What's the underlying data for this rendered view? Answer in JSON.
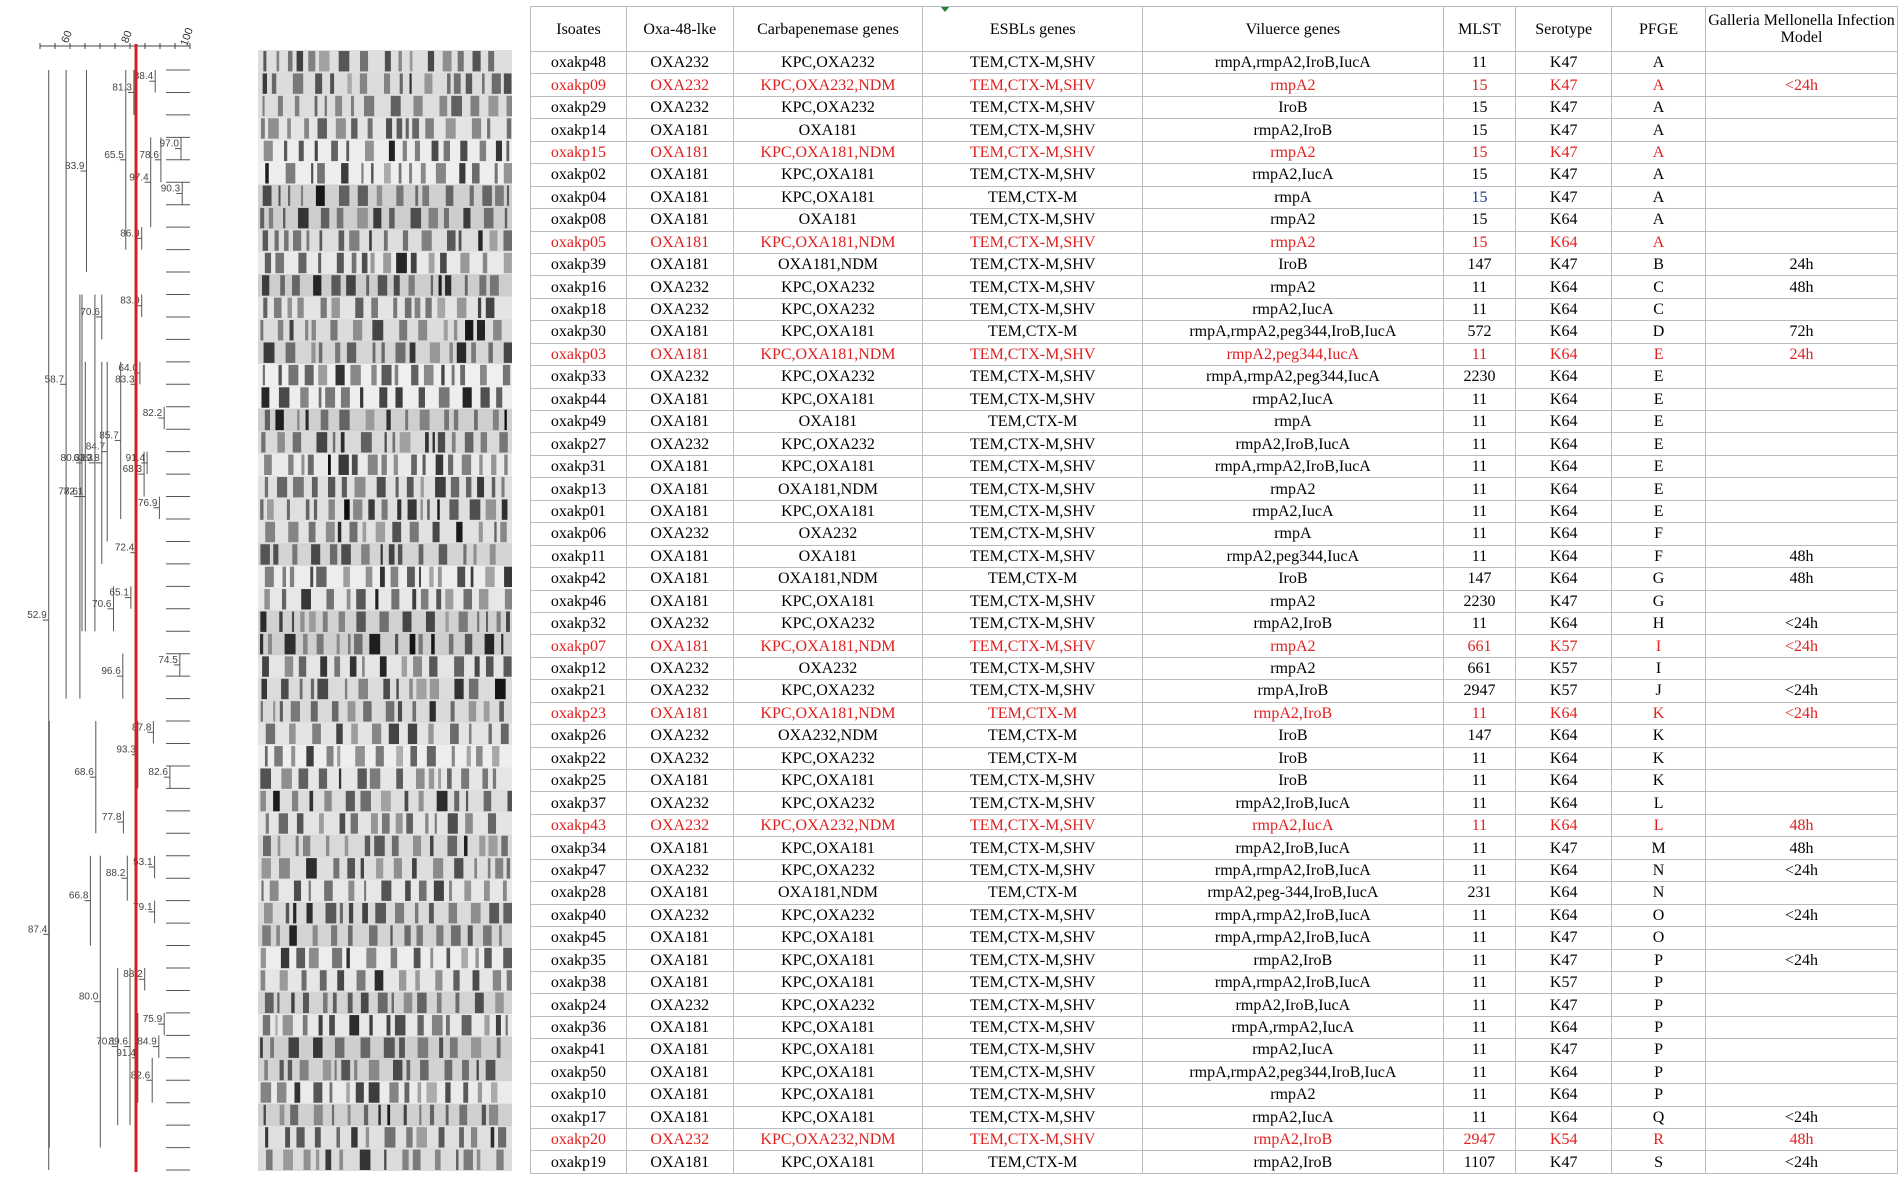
{
  "dendrogram": {
    "scale_ticks": [
      "60",
      "80",
      "100"
    ],
    "node_labels": [
      "88.4",
      "81.3",
      "97.0",
      "78.6",
      "90.3",
      "97.4",
      "86.9",
      "65.5",
      "83.9",
      "83.9",
      "70.6",
      "64.0",
      "83.3",
      "82.2",
      "91.4",
      "68.3",
      "76.9",
      "85.7",
      "84.7",
      "72.4",
      "89.8",
      "65.1",
      "70.6",
      "82.1",
      "63.3",
      "80.3",
      "74.5",
      "96.6",
      "77.6",
      "58.7",
      "87.8",
      "82.6",
      "93.3",
      "77.8",
      "68.6",
      "53.1",
      "88.2",
      "79.1",
      "66.8",
      "88.2",
      "75.9",
      "84.9",
      "82.6",
      "91.4",
      "89.6",
      "70.1",
      "80.0",
      "87.4",
      "52.9"
    ],
    "cut_line_color": "#d42020"
  },
  "table": {
    "headers": [
      "Isoates",
      "Oxa-48-lke",
      "Carbapenemase genes",
      "ESBLs genes",
      "Viluerce genes",
      "MLST",
      "Serotype",
      "PFGE",
      "Galleria Mellonella Infection Model"
    ],
    "highlight_color": "#e0201f",
    "rows": [
      {
        "id": "oxakp48",
        "oxa": "OXA232",
        "carb": "KPC,OXA232",
        "esbl": "TEM,CTX-M,SHV",
        "vir": "rmpA,rmpA2,IroB,IucA",
        "mlst": "11",
        "sero": "K47",
        "pfge": "A",
        "gm": "",
        "hl": false
      },
      {
        "id": "oxakp09",
        "oxa": "OXA232",
        "carb": "KPC,OXA232,NDM",
        "esbl": "TEM,CTX-M,SHV",
        "vir": "rmpA2",
        "mlst": "15",
        "sero": "K47",
        "pfge": "A",
        "gm": "<24h",
        "hl": true
      },
      {
        "id": "oxakp29",
        "oxa": "OXA232",
        "carb": "KPC,OXA232",
        "esbl": "TEM,CTX-M,SHV",
        "vir": "IroB",
        "mlst": "15",
        "sero": "K47",
        "pfge": "A",
        "gm": "",
        "hl": false
      },
      {
        "id": "oxakp14",
        "oxa": "OXA181",
        "carb": "OXA181",
        "esbl": "TEM,CTX-M,SHV",
        "vir": "rmpA2,IroB",
        "mlst": "15",
        "sero": "K47",
        "pfge": "A",
        "gm": "",
        "hl": false
      },
      {
        "id": "oxakp15",
        "oxa": "OXA181",
        "carb": "KPC,OXA181,NDM",
        "esbl": "TEM,CTX-M,SHV",
        "vir": "rmpA2",
        "mlst": "15",
        "sero": "K47",
        "pfge": "A",
        "gm": "",
        "hl": true
      },
      {
        "id": "oxakp02",
        "oxa": "OXA181",
        "carb": "KPC,OXA181",
        "esbl": "TEM,CTX-M,SHV",
        "vir": "rmpA2,IucA",
        "mlst": "15",
        "sero": "K47",
        "pfge": "A",
        "gm": "",
        "hl": false
      },
      {
        "id": "oxakp04",
        "oxa": "OXA181",
        "carb": "KPC,OXA181",
        "esbl": "TEM,CTX-M",
        "vir": "rmpA",
        "mlst": "15",
        "sero": "K47",
        "pfge": "A",
        "gm": "",
        "hl": false,
        "mlst_blue": true
      },
      {
        "id": "oxakp08",
        "oxa": "OXA181",
        "carb": "OXA181",
        "esbl": "TEM,CTX-M,SHV",
        "vir": "rmpA2",
        "mlst": "15",
        "sero": "K64",
        "pfge": "A",
        "gm": "",
        "hl": false
      },
      {
        "id": "oxakp05",
        "oxa": "OXA181",
        "carb": "KPC,OXA181,NDM",
        "esbl": "TEM,CTX-M,SHV",
        "vir": "rmpA2",
        "mlst": "15",
        "sero": "K64",
        "pfge": "A",
        "gm": "",
        "hl": true
      },
      {
        "id": "oxakp39",
        "oxa": "OXA181",
        "carb": "OXA181,NDM",
        "esbl": "TEM,CTX-M,SHV",
        "vir": "IroB",
        "mlst": "147",
        "sero": "K47",
        "pfge": "B",
        "gm": "24h",
        "hl": false
      },
      {
        "id": "oxakp16",
        "oxa": "OXA232",
        "carb": "KPC,OXA232",
        "esbl": "TEM,CTX-M,SHV",
        "vir": "rmpA2",
        "mlst": "11",
        "sero": "K64",
        "pfge": "C",
        "gm": "48h",
        "hl": false
      },
      {
        "id": "oxakp18",
        "oxa": "OXA232",
        "carb": "KPC,OXA232",
        "esbl": "TEM,CTX-M,SHV",
        "vir": "rmpA2,IucA",
        "mlst": "11",
        "sero": "K64",
        "pfge": "C",
        "gm": "",
        "hl": false
      },
      {
        "id": "oxakp30",
        "oxa": "OXA181",
        "carb": "KPC,OXA181",
        "esbl": "TEM,CTX-M",
        "vir": "rmpA,rmpA2,peg344,IroB,IucA",
        "mlst": "572",
        "sero": "K64",
        "pfge": "D",
        "gm": "72h",
        "hl": false
      },
      {
        "id": "oxakp03",
        "oxa": "OXA181",
        "carb": "KPC,OXA181,NDM",
        "esbl": "TEM,CTX-M,SHV",
        "vir": "rmpA2,peg344,IucA",
        "mlst": "11",
        "sero": "K64",
        "pfge": "E",
        "gm": "24h",
        "hl": true
      },
      {
        "id": "oxakp33",
        "oxa": "OXA232",
        "carb": "KPC,OXA232",
        "esbl": "TEM,CTX-M,SHV",
        "vir": "rmpA,rmpA2,peg344,IucA",
        "mlst": "2230",
        "sero": "K64",
        "pfge": "E",
        "gm": "",
        "hl": false
      },
      {
        "id": "oxakp44",
        "oxa": "OXA181",
        "carb": "KPC,OXA181",
        "esbl": "TEM,CTX-M,SHV",
        "vir": "rmpA2,IucA",
        "mlst": "11",
        "sero": "K64",
        "pfge": "E",
        "gm": "",
        "hl": false
      },
      {
        "id": "oxakp49",
        "oxa": "OXA181",
        "carb": "OXA181",
        "esbl": "TEM,CTX-M",
        "vir": "rmpA",
        "mlst": "11",
        "sero": "K64",
        "pfge": "E",
        "gm": "",
        "hl": false
      },
      {
        "id": "oxakp27",
        "oxa": "OXA232",
        "carb": "KPC,OXA232",
        "esbl": "TEM,CTX-M,SHV",
        "vir": "rmpA2,IroB,IucA",
        "mlst": "11",
        "sero": "K64",
        "pfge": "E",
        "gm": "",
        "hl": false
      },
      {
        "id": "oxakp31",
        "oxa": "OXA181",
        "carb": "KPC,OXA181",
        "esbl": "TEM,CTX-M,SHV",
        "vir": "rmpA,rmpA2,IroB,IucA",
        "mlst": "11",
        "sero": "K64",
        "pfge": "E",
        "gm": "",
        "hl": false
      },
      {
        "id": "oxakp13",
        "oxa": "OXA181",
        "carb": "OXA181,NDM",
        "esbl": "TEM,CTX-M,SHV",
        "vir": "rmpA2",
        "mlst": "11",
        "sero": "K64",
        "pfge": "E",
        "gm": "",
        "hl": false
      },
      {
        "id": "oxakp01",
        "oxa": "OXA181",
        "carb": "KPC,OXA181",
        "esbl": "TEM,CTX-M,SHV",
        "vir": "rmpA2,IucA",
        "mlst": "11",
        "sero": "K64",
        "pfge": "E",
        "gm": "",
        "hl": false
      },
      {
        "id": "oxakp06",
        "oxa": "OXA232",
        "carb": "OXA232",
        "esbl": "TEM,CTX-M,SHV",
        "vir": "rmpA",
        "mlst": "11",
        "sero": "K64",
        "pfge": "F",
        "gm": "",
        "hl": false
      },
      {
        "id": "oxakp11",
        "oxa": "OXA181",
        "carb": "OXA181",
        "esbl": "TEM,CTX-M,SHV",
        "vir": "rmpA2,peg344,IucA",
        "mlst": "11",
        "sero": "K64",
        "pfge": "F",
        "gm": "48h",
        "hl": false
      },
      {
        "id": "oxakp42",
        "oxa": "OXA181",
        "carb": "OXA181,NDM",
        "esbl": "TEM,CTX-M",
        "vir": "IroB",
        "mlst": "147",
        "sero": "K64",
        "pfge": "G",
        "gm": "48h",
        "hl": false
      },
      {
        "id": "oxakp46",
        "oxa": "OXA181",
        "carb": "KPC,OXA181",
        "esbl": "TEM,CTX-M,SHV",
        "vir": "rmpA2",
        "mlst": "2230",
        "sero": "K47",
        "pfge": "G",
        "gm": "",
        "hl": false
      },
      {
        "id": "oxakp32",
        "oxa": "OXA232",
        "carb": "KPC,OXA232",
        "esbl": "TEM,CTX-M,SHV",
        "vir": "rmpA2,IroB",
        "mlst": "11",
        "sero": "K64",
        "pfge": "H",
        "gm": "<24h",
        "hl": false
      },
      {
        "id": "oxakp07",
        "oxa": "OXA181",
        "carb": "KPC,OXA181,NDM",
        "esbl": "TEM,CTX-M,SHV",
        "vir": "rmpA2",
        "mlst": "661",
        "sero": "K57",
        "pfge": "I",
        "gm": "<24h",
        "hl": true
      },
      {
        "id": "oxakp12",
        "oxa": "OXA232",
        "carb": "OXA232",
        "esbl": "TEM,CTX-M,SHV",
        "vir": "rmpA2",
        "mlst": "661",
        "sero": "K57",
        "pfge": "I",
        "gm": "",
        "hl": false
      },
      {
        "id": "oxakp21",
        "oxa": "OXA232",
        "carb": "KPC,OXA232",
        "esbl": "TEM,CTX-M,SHV",
        "vir": "rmpA,IroB",
        "mlst": "2947",
        "sero": "K57",
        "pfge": "J",
        "gm": "<24h",
        "hl": false
      },
      {
        "id": "oxakp23",
        "oxa": "OXA181",
        "carb": "KPC,OXA181,NDM",
        "esbl": "TEM,CTX-M",
        "vir": "rmpA2,IroB",
        "mlst": "11",
        "sero": "K64",
        "pfge": "K",
        "gm": "<24h",
        "hl": true
      },
      {
        "id": "oxakp26",
        "oxa": "OXA232",
        "carb": "OXA232,NDM",
        "esbl": "TEM,CTX-M",
        "vir": "IroB",
        "mlst": "147",
        "sero": "K64",
        "pfge": "K",
        "gm": "",
        "hl": false
      },
      {
        "id": "oxakp22",
        "oxa": "OXA232",
        "carb": "KPC,OXA232",
        "esbl": "TEM,CTX-M",
        "vir": "IroB",
        "mlst": "11",
        "sero": "K64",
        "pfge": "K",
        "gm": "",
        "hl": false
      },
      {
        "id": "oxakp25",
        "oxa": "OXA181",
        "carb": "KPC,OXA181",
        "esbl": "TEM,CTX-M,SHV",
        "vir": "IroB",
        "mlst": "11",
        "sero": "K64",
        "pfge": "K",
        "gm": "",
        "hl": false
      },
      {
        "id": "oxakp37",
        "oxa": "OXA232",
        "carb": "KPC,OXA232",
        "esbl": "TEM,CTX-M,SHV",
        "vir": "rmpA2,IroB,IucA",
        "mlst": "11",
        "sero": "K64",
        "pfge": "L",
        "gm": "",
        "hl": false
      },
      {
        "id": "oxakp43",
        "oxa": "OXA232",
        "carb": "KPC,OXA232,NDM",
        "esbl": "TEM,CTX-M,SHV",
        "vir": "rmpA2,IucA",
        "mlst": "11",
        "sero": "K64",
        "pfge": "L",
        "gm": "48h",
        "hl": true
      },
      {
        "id": "oxakp34",
        "oxa": "OXA181",
        "carb": "KPC,OXA181",
        "esbl": "TEM,CTX-M,SHV",
        "vir": "rmpA2,IroB,IucA",
        "mlst": "11",
        "sero": "K47",
        "pfge": "M",
        "gm": "48h",
        "hl": false
      },
      {
        "id": "oxakp47",
        "oxa": "OXA232",
        "carb": "KPC,OXA232",
        "esbl": "TEM,CTX-M,SHV",
        "vir": "rmpA,rmpA2,IroB,IucA",
        "mlst": "11",
        "sero": "K64",
        "pfge": "N",
        "gm": "<24h",
        "hl": false
      },
      {
        "id": "oxakp28",
        "oxa": "OXA181",
        "carb": "OXA181,NDM",
        "esbl": "TEM,CTX-M",
        "vir": "rmpA2,peg-344,IroB,IucA",
        "mlst": "231",
        "sero": "K64",
        "pfge": "N",
        "gm": "",
        "hl": false
      },
      {
        "id": "oxakp40",
        "oxa": "OXA232",
        "carb": "KPC,OXA232",
        "esbl": "TEM,CTX-M,SHV",
        "vir": "rmpA,rmpA2,IroB,IucA",
        "mlst": "11",
        "sero": "K64",
        "pfge": "O",
        "gm": "<24h",
        "hl": false
      },
      {
        "id": "oxakp45",
        "oxa": "OXA181",
        "carb": "KPC,OXA181",
        "esbl": "TEM,CTX-M,SHV",
        "vir": "rmpA,rmpA2,IroB,IucA",
        "mlst": "11",
        "sero": "K47",
        "pfge": "O",
        "gm": "",
        "hl": false
      },
      {
        "id": "oxakp35",
        "oxa": "OXA181",
        "carb": "KPC,OXA181",
        "esbl": "TEM,CTX-M,SHV",
        "vir": "rmpA2,IroB",
        "mlst": "11",
        "sero": "K47",
        "pfge": "P",
        "gm": "<24h",
        "hl": false
      },
      {
        "id": "oxakp38",
        "oxa": "OXA181",
        "carb": "KPC,OXA181",
        "esbl": "TEM,CTX-M,SHV",
        "vir": "rmpA,rmpA2,IroB,IucA",
        "mlst": "11",
        "sero": "K57",
        "pfge": "P",
        "gm": "",
        "hl": false
      },
      {
        "id": "oxakp24",
        "oxa": "OXA232",
        "carb": "KPC,OXA232",
        "esbl": "TEM,CTX-M,SHV",
        "vir": "rmpA2,IroB,IucA",
        "mlst": "11",
        "sero": "K47",
        "pfge": "P",
        "gm": "",
        "hl": false
      },
      {
        "id": "oxakp36",
        "oxa": "OXA181",
        "carb": "KPC,OXA181",
        "esbl": "TEM,CTX-M,SHV",
        "vir": "rmpA,rmpA2,IucA",
        "mlst": "11",
        "sero": "K64",
        "pfge": "P",
        "gm": "",
        "hl": false
      },
      {
        "id": "oxakp41",
        "oxa": "OXA181",
        "carb": "KPC,OXA181",
        "esbl": "TEM,CTX-M,SHV",
        "vir": "rmpA2,IucA",
        "mlst": "11",
        "sero": "K47",
        "pfge": "P",
        "gm": "",
        "hl": false
      },
      {
        "id": "oxakp50",
        "oxa": "OXA181",
        "carb": "KPC,OXA181",
        "esbl": "TEM,CTX-M,SHV",
        "vir": "rmpA,rmpA2,peg344,IroB,IucA",
        "mlst": "11",
        "sero": "K64",
        "pfge": "P",
        "gm": "",
        "hl": false
      },
      {
        "id": "oxakp10",
        "oxa": "OXA181",
        "carb": "KPC,OXA181",
        "esbl": "TEM,CTX-M,SHV",
        "vir": "rmpA2",
        "mlst": "11",
        "sero": "K64",
        "pfge": "P",
        "gm": "",
        "hl": false
      },
      {
        "id": "oxakp17",
        "oxa": "OXA181",
        "carb": "KPC,OXA181",
        "esbl": "TEM,CTX-M,SHV",
        "vir": "rmpA2,IucA",
        "mlst": "11",
        "sero": "K64",
        "pfge": "Q",
        "gm": "<24h",
        "hl": false
      },
      {
        "id": "oxakp20",
        "oxa": "OXA232",
        "carb": "KPC,OXA232,NDM",
        "esbl": "TEM,CTX-M,SHV",
        "vir": "rmpA2,IroB",
        "mlst": "2947",
        "sero": "K54",
        "pfge": "R",
        "gm": "48h",
        "hl": true
      },
      {
        "id": "oxakp19",
        "oxa": "OXA181",
        "carb": "KPC,OXA181",
        "esbl": "TEM,CTX-M",
        "vir": "rmpA2,IroB",
        "mlst": "1107",
        "sero": "K47",
        "pfge": "S",
        "gm": "<24h",
        "hl": false
      }
    ]
  }
}
